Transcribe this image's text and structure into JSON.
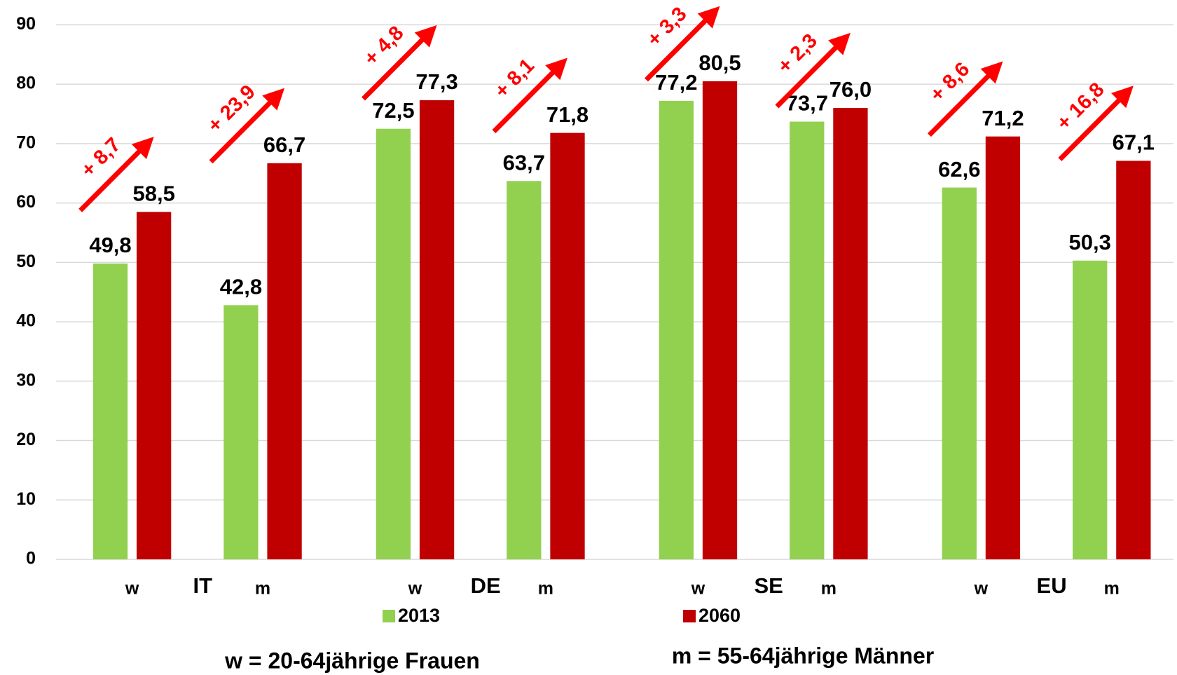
{
  "chart_data": {
    "type": "bar",
    "categories": [
      "w",
      "m",
      "w",
      "m",
      "w",
      "m",
      "w",
      "m"
    ],
    "groups": [
      "IT",
      "DE",
      "SE",
      "EU"
    ],
    "series": [
      {
        "name": "2013",
        "color": "#92d050",
        "values": [
          49.8,
          42.8,
          72.5,
          63.7,
          77.2,
          73.7,
          62.6,
          50.3
        ],
        "value_labels": [
          "49,8",
          "42,8",
          "72,5",
          "63,7",
          "77,2",
          "73,7",
          "62,6",
          "50,3"
        ]
      },
      {
        "name": "2060",
        "color": "#c00000",
        "values": [
          58.5,
          66.7,
          77.3,
          71.8,
          80.5,
          76.0,
          71.2,
          67.1
        ],
        "value_labels": [
          "58,5",
          "66,7",
          "77,3",
          "71,8",
          "80,5",
          "76,0",
          "71,2",
          "67,1"
        ]
      }
    ],
    "annotations": [
      "+ 8,7",
      "+ 23,9",
      "+ 4,8",
      "+ 8,1",
      "+ 3,3",
      "+ 2,3",
      "+ 8,6",
      "+ 16,8"
    ],
    "annotation_color": "#ff0000",
    "ylim": [
      0,
      90
    ],
    "yticks": [
      0,
      10,
      20,
      30,
      40,
      50,
      60,
      70,
      80,
      90
    ],
    "grid": true,
    "notes": [
      "w = 20-64jährige Frauen",
      "m = 55-64jährige Männer"
    ]
  }
}
